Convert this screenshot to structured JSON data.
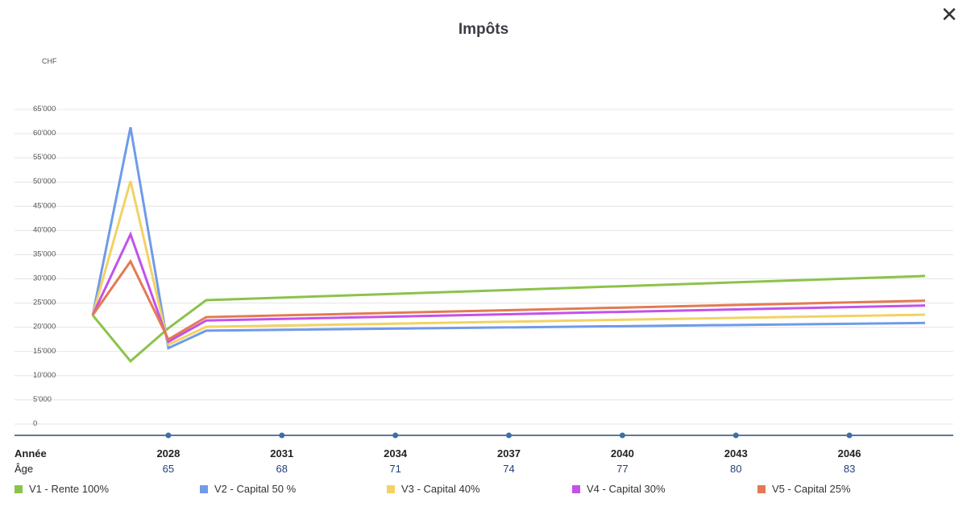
{
  "header": {
    "title": "Impôts",
    "close_icon": "close-icon"
  },
  "chart_data": {
    "type": "line",
    "title": "Impôts",
    "ylabel": "CHF",
    "ylim": [
      0,
      65000
    ],
    "yticks": [
      0,
      5000,
      10000,
      15000,
      20000,
      25000,
      30000,
      35000,
      40000,
      45000,
      50000,
      55000,
      60000,
      65000
    ],
    "ytick_labels": [
      "0",
      "5'000",
      "10'000",
      "15'000",
      "20'000",
      "25'000",
      "30'000",
      "35'000",
      "40'000",
      "45'000",
      "50'000",
      "55'000",
      "60'000",
      "65'000"
    ],
    "grid": true,
    "x": [
      2026,
      2027,
      2028,
      2029,
      2048
    ],
    "xticks": [
      2028,
      2031,
      2034,
      2037,
      2040,
      2043,
      2046
    ],
    "xtick_labels": [
      "2028",
      "2031",
      "2034",
      "2037",
      "2040",
      "2043",
      "2046"
    ],
    "ages": [
      "65",
      "68",
      "71",
      "74",
      "77",
      "80",
      "83"
    ],
    "row_labels": {
      "year": "Année",
      "age": "Âge"
    },
    "legend_position": "bottom",
    "series": [
      {
        "name": "V1 - Rente 100%",
        "color": "#8bc34a",
        "values": [
          22500,
          13000,
          19800,
          25600,
          30600
        ]
      },
      {
        "name": "V2 - Capital 50 %",
        "color": "#6f9be8",
        "values": [
          22500,
          61300,
          15700,
          19300,
          20900
        ]
      },
      {
        "name": "V3 - Capital 40%",
        "color": "#f2d264",
        "values": [
          22500,
          50200,
          16400,
          20100,
          22600
        ]
      },
      {
        "name": "V4 - Capital 30%",
        "color": "#c152ec",
        "values": [
          22500,
          39200,
          17000,
          21400,
          24500
        ]
      },
      {
        "name": "V5 - Capital 25%",
        "color": "#e37a52",
        "values": [
          22500,
          33600,
          17500,
          22100,
          25500
        ]
      }
    ]
  }
}
